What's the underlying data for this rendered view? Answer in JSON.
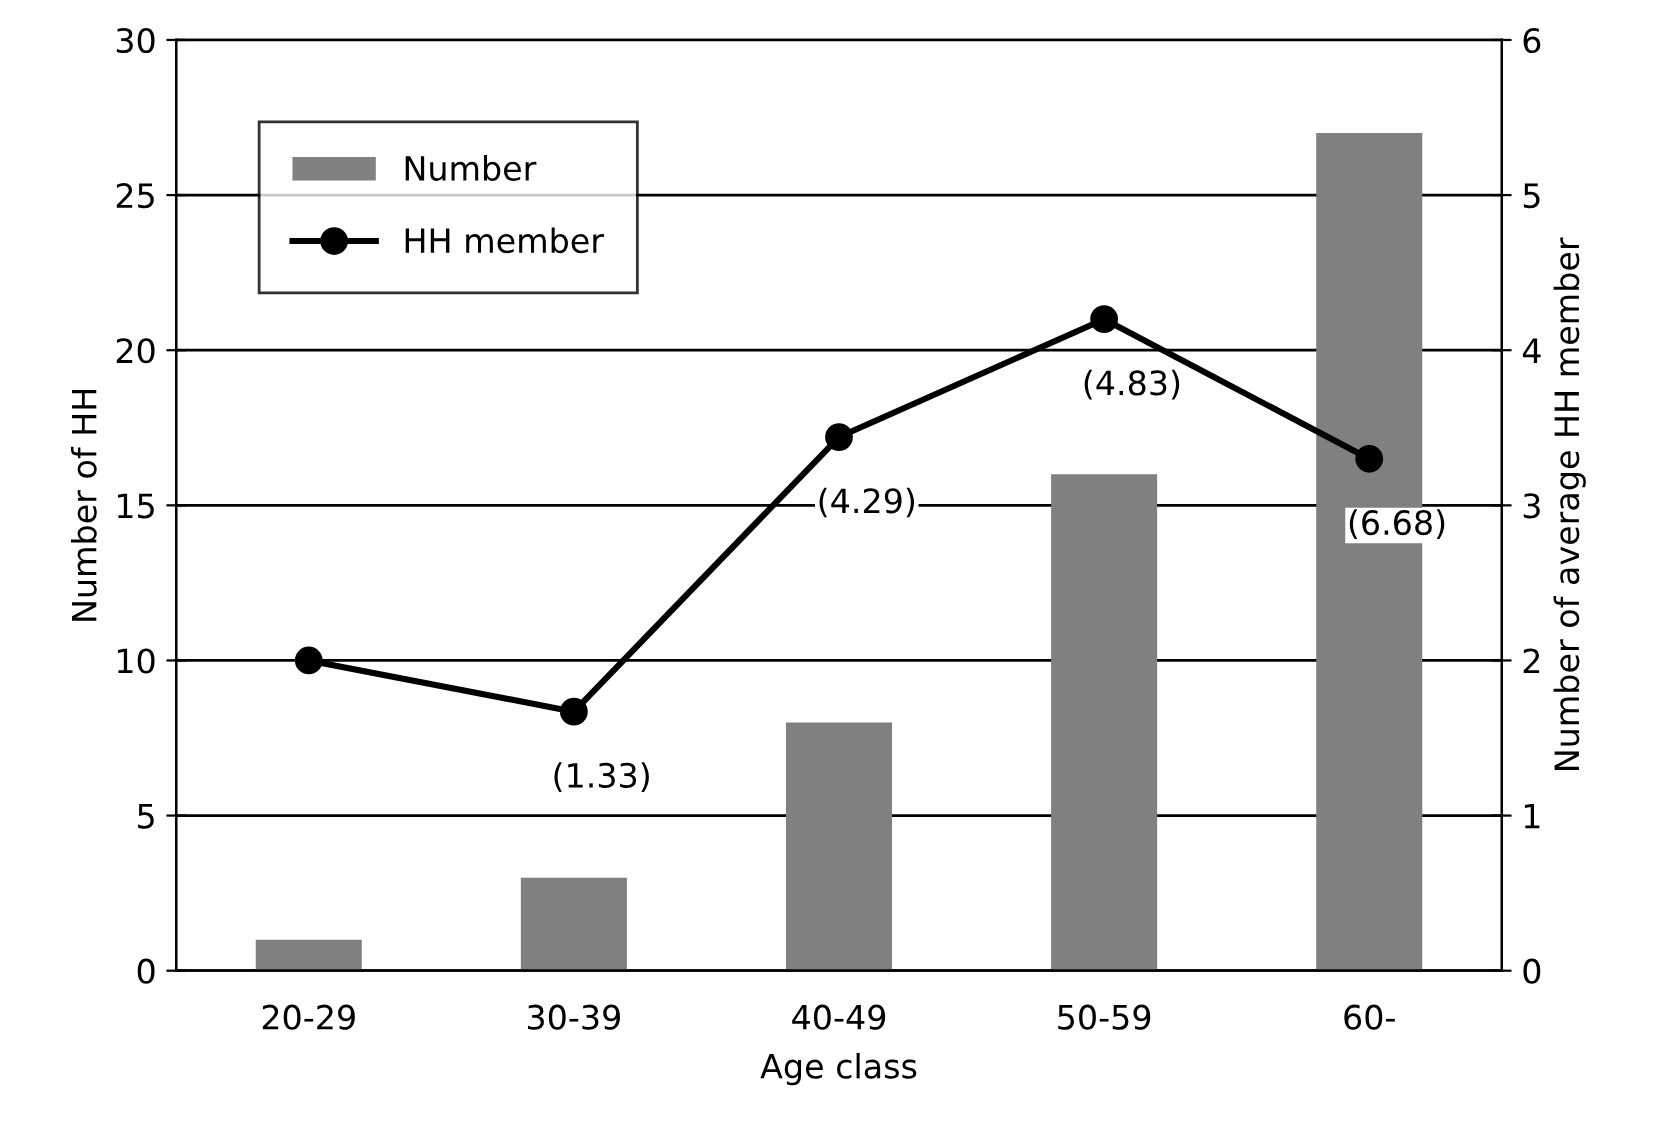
{
  "chart_data": {
    "type": "bar",
    "xlabel": "Age class",
    "ylabel": "Number of HH",
    "y2label": "Number of average HH member",
    "categories": [
      "20-29",
      "30-39",
      "40-49",
      "50-59",
      "60-"
    ],
    "series": [
      {
        "name": "Number",
        "color": "#808080",
        "values": [
          1,
          3,
          8,
          16,
          27
        ]
      },
      {
        "name": "HH member",
        "type": "line",
        "axis": "y2",
        "color": "#000000",
        "marker": "circle",
        "values": [
          2.0,
          1.67,
          3.44,
          4.2,
          3.3
        ]
      }
    ],
    "ylim": [
      0,
      30
    ],
    "yticks": [
      0,
      5,
      10,
      15,
      20,
      25,
      30
    ],
    "y2lim": [
      0,
      6
    ],
    "y2ticks": [
      0,
      1,
      2,
      3,
      4,
      5,
      6
    ],
    "grid": "y",
    "legend": "top left",
    "annotations": [
      "(1.33)",
      "(4.29)",
      "(4.83)",
      "(6.68)"
    ]
  }
}
